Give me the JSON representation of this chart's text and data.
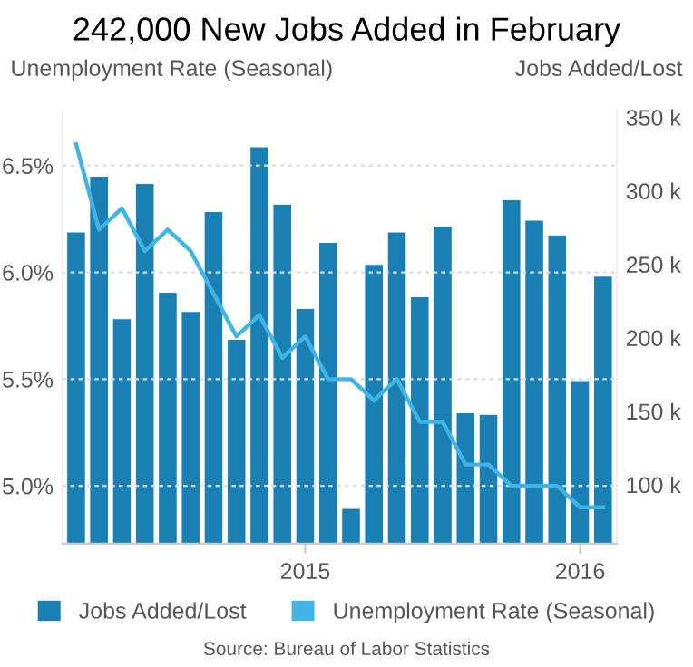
{
  "chart_data": {
    "type": "bar",
    "title": "242,000 New Jobs Added in February",
    "ylabel": "Unemployment Rate (Seasonal)",
    "y2label": "Jobs Added/Lost",
    "categories": [
      null,
      null,
      null,
      null,
      null,
      null,
      null,
      null,
      null,
      null,
      "2015",
      null,
      null,
      null,
      null,
      null,
      null,
      null,
      null,
      null,
      null,
      null,
      "2016",
      null
    ],
    "series": [
      {
        "name": "Jobs Added/Lost",
        "axis": "y2",
        "color": "#1a80b4",
        "values": [
          272,
          310,
          213,
          305,
          231,
          218,
          286,
          199,
          330,
          291,
          220,
          265,
          84,
          250,
          272,
          228,
          276,
          149,
          148,
          294,
          280,
          270,
          171,
          242
        ]
      },
      {
        "name": "Unemployment Rate (Seasonal)",
        "type": "line",
        "axis": "y",
        "color": "#41b4e6",
        "values": [
          6.6,
          6.2,
          6.3,
          6.1,
          6.2,
          6.1,
          5.9,
          5.7,
          5.8,
          5.6,
          5.7,
          5.5,
          5.5,
          5.4,
          5.5,
          5.3,
          5.3,
          5.1,
          5.1,
          5.0,
          5.0,
          5.0,
          4.9,
          4.9
        ]
      }
    ],
    "ylim": [
      4.73,
      6.76
    ],
    "yticks": [
      {
        "value": 5.0,
        "label": "5.0%"
      },
      {
        "value": 5.5,
        "label": "5.5%"
      },
      {
        "value": 6.0,
        "label": "6.0%"
      },
      {
        "value": 6.5,
        "label": "6.5%"
      }
    ],
    "y2lim": [
      60,
      355
    ],
    "y2ticks": [
      {
        "value": 100,
        "label": "100 k"
      },
      {
        "value": 150,
        "label": "150 k"
      },
      {
        "value": 200,
        "label": "200 k"
      },
      {
        "value": 250,
        "label": "250 k"
      },
      {
        "value": 300,
        "label": "300 k"
      },
      {
        "value": 350,
        "label": "350 k"
      }
    ],
    "grid": "y",
    "legend": "bottom",
    "marker": "none",
    "line_style": "solid",
    "annotations": [
      "Source: Bureau of Labor Statistics"
    ]
  }
}
